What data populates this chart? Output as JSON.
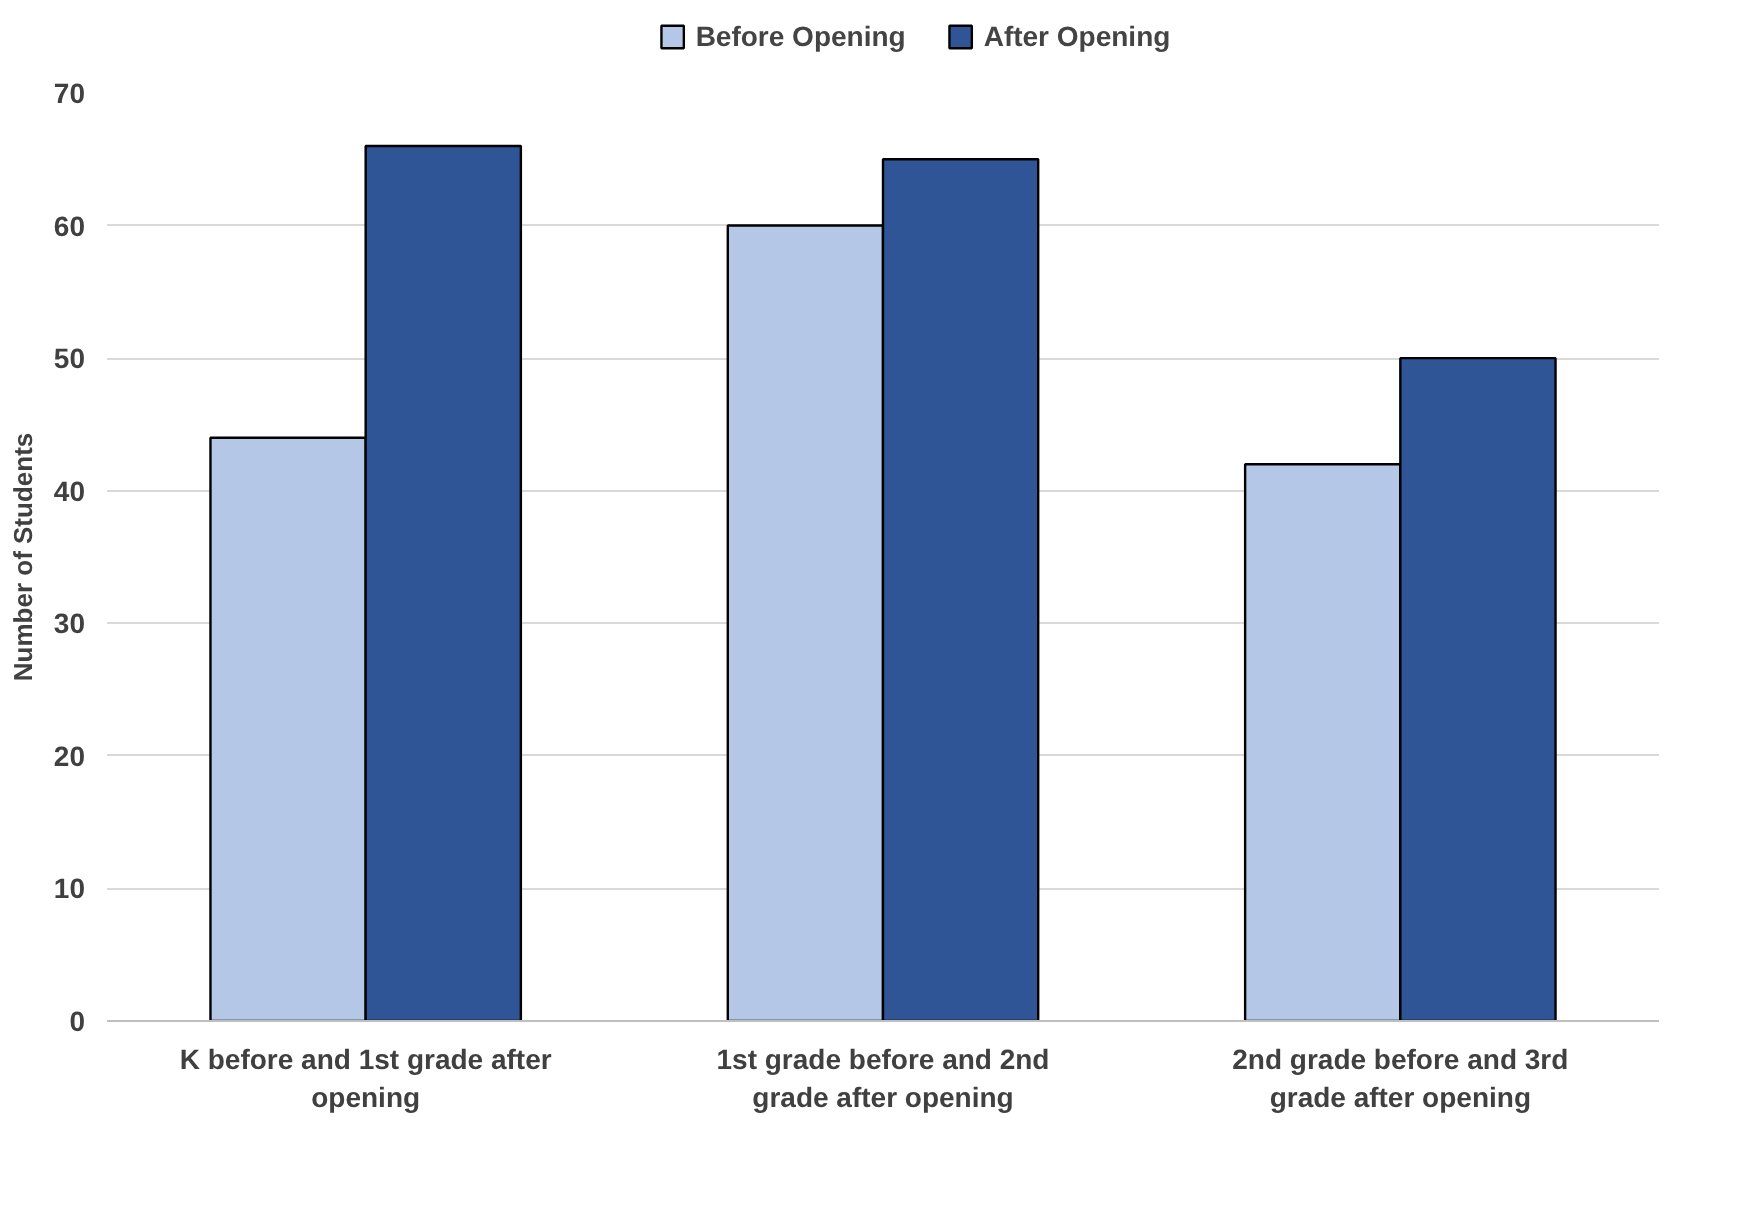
{
  "chart_data": {
    "type": "bar",
    "ylabel": "Number of Students",
    "categories": [
      "K before and 1st grade after opening",
      "1st grade before and 2nd grade after opening",
      "2nd grade before and 3rd grade after opening"
    ],
    "series": [
      {
        "name": "Before Opening",
        "color": "#b4c7e7",
        "values": [
          44,
          60,
          42
        ]
      },
      {
        "name": "After Opening",
        "color": "#2f5597",
        "values": [
          66,
          65,
          50
        ]
      }
    ],
    "ylim": [
      0,
      70
    ],
    "yticks": [
      0,
      10,
      20,
      30,
      40,
      50,
      60,
      70
    ],
    "grid": "y",
    "legend": "top"
  }
}
